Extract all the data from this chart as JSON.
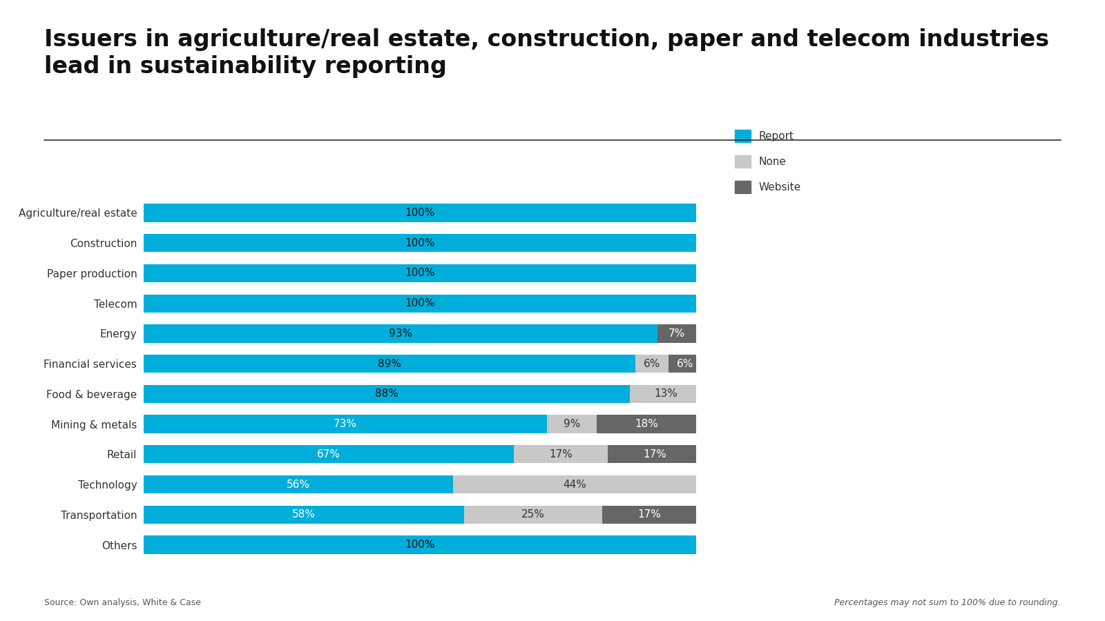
{
  "title": "Issuers in agriculture/real estate, construction, paper and telecom industries\nlead in sustainability reporting",
  "categories": [
    "Agriculture/real estate",
    "Construction",
    "Paper production",
    "Telecom",
    "Energy",
    "Financial services",
    "Food & beverage",
    "Mining & metals",
    "Retail",
    "Technology",
    "Transportation",
    "Others"
  ],
  "report": [
    100,
    100,
    100,
    100,
    93,
    89,
    88,
    73,
    67,
    56,
    58,
    100
  ],
  "none": [
    0,
    0,
    0,
    0,
    0,
    6,
    13,
    9,
    17,
    44,
    25,
    0
  ],
  "website": [
    0,
    0,
    0,
    0,
    7,
    6,
    0,
    18,
    17,
    0,
    17,
    0
  ],
  "color_report": "#00AEDB",
  "color_none": "#C8C8C8",
  "color_website": "#666666",
  "background_color": "#FFFFFF",
  "title_fontsize": 24,
  "label_fontsize": 11,
  "bar_label_fontsize": 11,
  "source_text": "Source: Own analysis, White & Case",
  "note_text": "Percentages may not sum to 100% due to rounding.",
  "legend_labels": [
    "Report",
    "None",
    "Website"
  ]
}
